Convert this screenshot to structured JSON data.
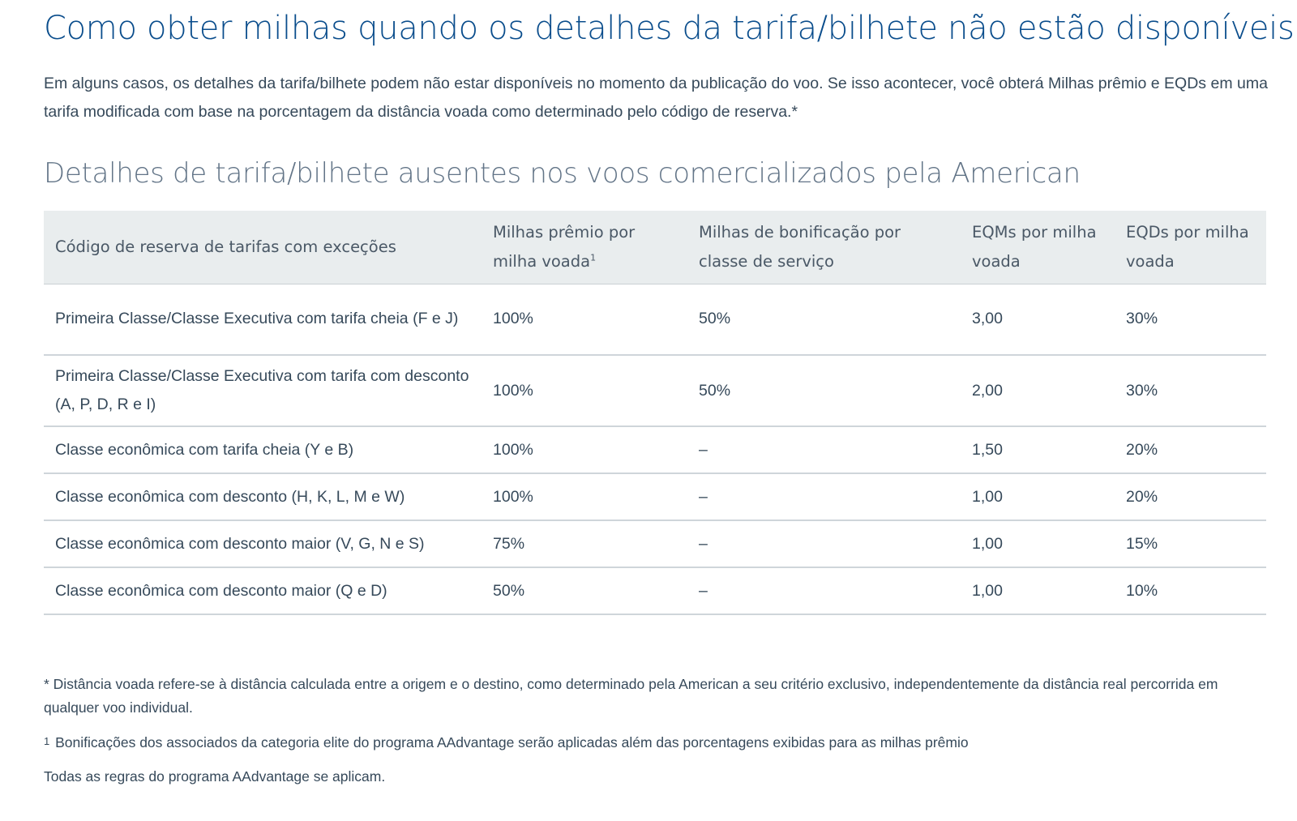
{
  "page": {
    "title": "Como obter milhas quando os detalhes da tarifa/bilhete não estão disponíveis",
    "intro": "Em alguns casos, os detalhes da tarifa/bilhete podem não estar disponíveis no momento da publicação do voo. Se isso acontecer, você obterá Milhas prêmio e EQDs em uma tarifa modificada com base na porcentagem da distância voada como determinado pelo código de reserva.*"
  },
  "section": {
    "title": "Detalhes de tarifa/bilhete ausentes nos voos comercializados pela American"
  },
  "table": {
    "headers": [
      "Código de reserva de tarifas com exceções",
      "Milhas prêmio por milha voada",
      "Milhas de bonificação por classe de serviço",
      "EQMs por milha voada",
      "EQDs por milha voada"
    ],
    "header_footnote_mark": "1",
    "rows": [
      [
        "Primeira Classe/Classe Executiva com tarifa cheia (F e J)",
        "100%",
        "50%",
        "3,00",
        "30%"
      ],
      [
        "Primeira Classe/Classe Executiva com tarifa com desconto (A, P, D, R e I)",
        "100%",
        "50%",
        "2,00",
        "30%"
      ],
      [
        "Classe econômica com tarifa cheia (Y e B)",
        "100%",
        "–",
        "1,50",
        "20%"
      ],
      [
        "Classe econômica com desconto (H, K, L, M e W)",
        "100%",
        "–",
        "1,00",
        "20%"
      ],
      [
        "Classe econômica com desconto maior (V, G, N e S)",
        "75%",
        "–",
        "1,00",
        "15%"
      ],
      [
        "Classe econômica com desconto maior (Q e D)",
        "50%",
        "–",
        "1,00",
        "10%"
      ]
    ]
  },
  "footnotes": {
    "distance": "* Distância voada refere-se à distância calculada entre a origem e o destino, como determinado pela American a seu critério exclusivo, independentemente da distância real percorrida em qualquer voo individual.",
    "elite_mark": "1",
    "elite": "Bonificações dos associados da categoria elite do programa AAdvantage serão aplicadas além das porcentagens exibidas para as milhas prêmio",
    "rules": "Todas as regras do programa AAdvantage se aplicam."
  }
}
